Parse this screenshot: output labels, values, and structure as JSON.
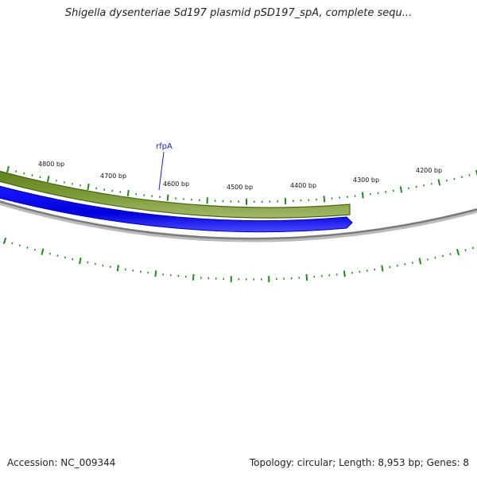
{
  "header": {
    "title": "Shigella dysenteriae Sd197 plasmid pSD197_spA, complete sequ..."
  },
  "footer": {
    "accession": "Accession: NC_009344",
    "topology": "Topology: circular; Length: 8,953 bp; Genes: 8"
  },
  "map": {
    "scale_labels": [
      "4800 bp",
      "4700 bp",
      "4600 bp",
      "4500 bp",
      "4400 bp",
      "4300 bp",
      "4200 bp"
    ],
    "gene_label": "rfpA",
    "colors": {
      "gene_forward": "#6b8e23",
      "gene_forward_edge": "#4a6317",
      "gene_reverse": "#0000ee",
      "backbone": "#888888",
      "ticks": "#1f8a1f",
      "gene_label": "#1a1acc"
    }
  }
}
